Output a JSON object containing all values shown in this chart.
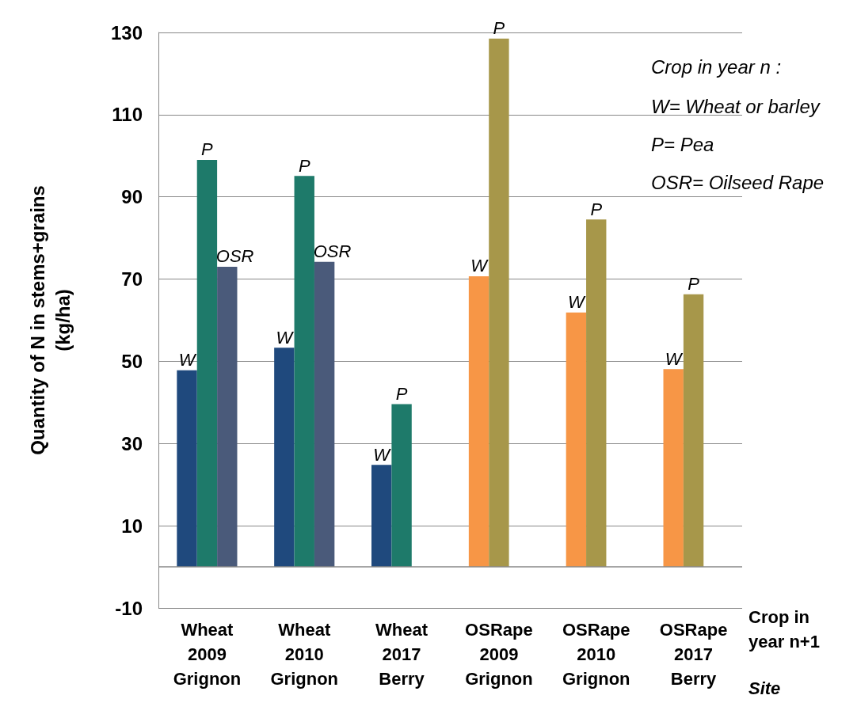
{
  "chart_data": {
    "type": "bar",
    "categories": [
      "Wheat\n2009\nGrignon",
      "Wheat\n2010\nGrignon",
      "Wheat\n2017\nBerry",
      "OSRape\n2009\nGrignon",
      "OSRape\n2010\nGrignon",
      "OSRape\n2017\nBerry"
    ],
    "series": [
      {
        "name": "W",
        "color": "#1f497d",
        "colors": [
          "#1f497d",
          "#1f497d",
          "#1f497d",
          "#f79646",
          "#f79646",
          "#f79646"
        ],
        "values": [
          47.8,
          53.3,
          24.8,
          70.7,
          61.9,
          48.1
        ]
      },
      {
        "name": "P",
        "color": "#1e7a6a",
        "colors": [
          "#1e7a6a",
          "#1e7a6a",
          "#1e7a6a",
          "#a7974a",
          "#a7974a",
          "#a7974a"
        ],
        "values": [
          99.0,
          95.1,
          39.6,
          128.5,
          84.5,
          66.3
        ]
      },
      {
        "name": "OSR",
        "color": "#4a5a7a",
        "values": [
          73.0,
          74.2,
          null,
          null,
          null,
          null
        ]
      }
    ],
    "ylabel": "Quantity of N in stems+grains\n(kg/ha)",
    "xlabel": "Crop in\nyear n+1",
    "annotations": [
      "Crop in year n :",
      "W= Wheat or barley",
      "P= Pea",
      "OSR= Oilseed Rape",
      "Site"
    ],
    "ylim": [
      -10,
      130
    ],
    "yticks": [
      -10,
      10,
      30,
      50,
      70,
      90,
      110,
      130
    ],
    "ref_lines": [
      {
        "axis": "y",
        "value": 0,
        "color": "#888888"
      }
    ],
    "grid": "y",
    "legend": false
  }
}
